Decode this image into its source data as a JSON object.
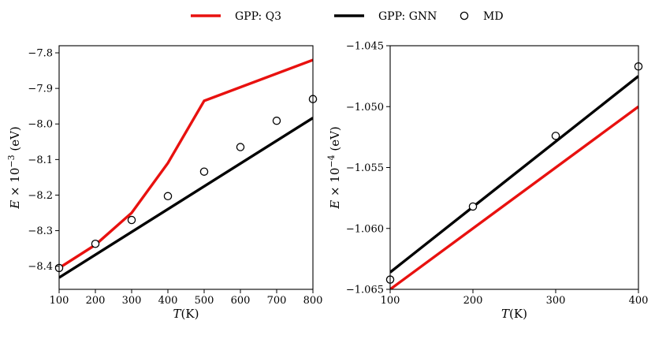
{
  "legend": {
    "items": [
      {
        "key": "q3",
        "label": "GPP: Q3",
        "kind": "line",
        "color": "#e8110f"
      },
      {
        "key": "gnn",
        "label": "GPP: GNN",
        "kind": "line",
        "color": "#000000"
      },
      {
        "key": "md",
        "label": "MD",
        "kind": "marker",
        "color": "#000000"
      }
    ]
  },
  "chart_data": [
    {
      "type": "line",
      "name": "left-panel",
      "xlabel": "T(K)",
      "ylabel": "E × 10−3 (eV)",
      "xlim": [
        100,
        800
      ],
      "ylim": [
        -8.465,
        -7.78
      ],
      "xticks": [
        100,
        200,
        300,
        400,
        500,
        600,
        700,
        800
      ],
      "xtick_labels": [
        "100",
        "200",
        "300",
        "400",
        "500",
        "600",
        "700",
        "800"
      ],
      "yticks": [
        -8.4,
        -8.3,
        -8.2,
        -8.1,
        -8.0,
        -7.9,
        -7.8
      ],
      "ytick_labels": [
        "−8.4",
        "−8.3",
        "−8.2",
        "−8.1",
        "−8.0",
        "−7.9",
        "−7.8"
      ],
      "series": [
        {
          "name": "GPP: Q3",
          "key": "q3",
          "style": "line",
          "color": "#e8110f",
          "x": [
            100,
            200,
            300,
            400,
            500,
            800
          ],
          "y": [
            -8.405,
            -8.34,
            -8.25,
            -8.11,
            -7.935,
            -7.82
          ]
        },
        {
          "name": "GPP: GNN",
          "key": "gnn",
          "style": "line",
          "color": "#000000",
          "x": [
            100,
            800
          ],
          "y": [
            -8.432,
            -7.983
          ]
        },
        {
          "name": "MD",
          "key": "md",
          "style": "marker",
          "color": "#000000",
          "x": [
            100,
            200,
            300,
            400,
            500,
            600,
            700,
            800
          ],
          "y": [
            -8.405,
            -8.337,
            -8.27,
            -8.203,
            -8.134,
            -8.065,
            -7.991,
            -7.93
          ]
        }
      ]
    },
    {
      "type": "line",
      "name": "right-panel",
      "xlabel": "T(K)",
      "ylabel": "E × 10−4 (eV)",
      "xlim": [
        100,
        400
      ],
      "ylim": [
        -1.065,
        -1.045
      ],
      "xticks": [
        100,
        200,
        300,
        400
      ],
      "xtick_labels": [
        "100",
        "200",
        "300",
        "400"
      ],
      "yticks": [
        -1.065,
        -1.06,
        -1.055,
        -1.05,
        -1.045
      ],
      "ytick_labels": [
        "−1.065",
        "−1.060",
        "−1.055",
        "−1.050",
        "−1.045"
      ],
      "series": [
        {
          "name": "GPP: Q3",
          "key": "q3",
          "style": "line",
          "color": "#e8110f",
          "x": [
            100,
            400
          ],
          "y": [
            -1.065,
            -1.05
          ]
        },
        {
          "name": "GPP: GNN",
          "key": "gnn",
          "style": "line",
          "color": "#000000",
          "x": [
            100,
            400
          ],
          "y": [
            -1.0636,
            -1.0475
          ]
        },
        {
          "name": "MD",
          "key": "md",
          "style": "marker",
          "color": "#000000",
          "x": [
            100,
            200,
            300,
            400
          ],
          "y": [
            -1.0642,
            -1.0582,
            -1.0524,
            -1.0467
          ]
        }
      ]
    }
  ]
}
